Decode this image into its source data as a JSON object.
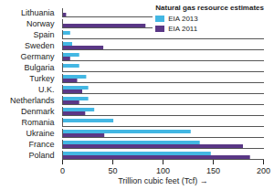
{
  "chart_data": {
    "type": "bar",
    "orientation": "horizontal",
    "categories": [
      "Lithuania",
      "Norway",
      "Spain",
      "Sweden",
      "Germany",
      "Bulgaria",
      "Turkey",
      "U.K.",
      "Netherlands",
      "Denmark",
      "Romania",
      "Ukraine",
      "France",
      "Poland"
    ],
    "series": [
      {
        "name": "EIA 2013",
        "color": "#43b7e3",
        "values": [
          0,
          0,
          8,
          10,
          17,
          17,
          24,
          26,
          26,
          32,
          51,
          128,
          137,
          148
        ]
      },
      {
        "name": "EIA 2011",
        "color": "#5a3786",
        "values": [
          4,
          83,
          null,
          41,
          8,
          null,
          15,
          20,
          17,
          23,
          null,
          42,
          180,
          187
        ]
      }
    ],
    "legend_title": "Natural gas resource estimates",
    "legend": "top-right",
    "x_label": "Trillion cubic feet (Tcf)",
    "xlim": [
      0,
      200
    ],
    "xticks": [
      0,
      50,
      100,
      150,
      200
    ],
    "grid": false
  }
}
